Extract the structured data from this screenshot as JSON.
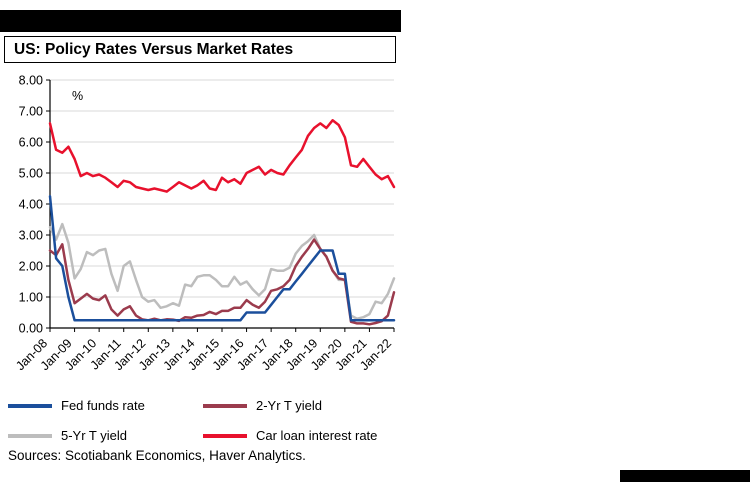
{
  "page": {
    "title": "US: Policy Rates Versus Market Rates",
    "sources": "Sources: Scotiabank Economics, Haver Analytics."
  },
  "colors": {
    "fed_funds": "#1B4F9C",
    "two_yr": "#9B3B4D",
    "five_yr": "#BDBDBD",
    "car_loan": "#E8112D",
    "grid": "#DADADA",
    "axis": "#000000",
    "header_bar": "#000000"
  },
  "legend": [
    {
      "label": "Fed funds rate",
      "color": "#1B4F9C"
    },
    {
      "label": "2-Yr T yield",
      "color": "#9B3B4D"
    },
    {
      "label": "5-Yr T yield",
      "color": "#BDBDBD"
    },
    {
      "label": "Car loan interest rate",
      "color": "#E8112D"
    }
  ],
  "chart_data": {
    "type": "line",
    "title": "US: Policy Rates Versus Market Rates",
    "xlabel": "",
    "ylabel": "%",
    "ylim": [
      0,
      8
    ],
    "grid": true,
    "legend_position": "below",
    "x_frequency": "quarterly, Jan-2008 through Jan-2022",
    "y_ticks": [
      "0.00",
      "1.00",
      "2.00",
      "3.00",
      "4.00",
      "5.00",
      "6.00",
      "7.00",
      "8.00"
    ],
    "x_tick_labels": [
      "Jan-08",
      "Jan-09",
      "Jan-10",
      "Jan-11",
      "Jan-12",
      "Jan-13",
      "Jan-14",
      "Jan-15",
      "Jan-16",
      "Jan-17",
      "Jan-18",
      "Jan-19",
      "Jan-20",
      "Jan-21",
      "Jan-22"
    ],
    "x_tick_indices": [
      0,
      4,
      8,
      12,
      16,
      20,
      24,
      28,
      32,
      36,
      40,
      44,
      48,
      52,
      56
    ],
    "draw_order": [
      2,
      1,
      0,
      3
    ],
    "series": [
      {
        "name": "Fed funds rate",
        "color": "#1B4F9C",
        "values": [
          4.25,
          2.25,
          2.0,
          1.0,
          0.25,
          0.25,
          0.25,
          0.25,
          0.25,
          0.25,
          0.25,
          0.25,
          0.25,
          0.25,
          0.25,
          0.25,
          0.25,
          0.25,
          0.25,
          0.25,
          0.25,
          0.25,
          0.25,
          0.25,
          0.25,
          0.25,
          0.25,
          0.25,
          0.25,
          0.25,
          0.25,
          0.25,
          0.5,
          0.5,
          0.5,
          0.5,
          0.75,
          1.0,
          1.25,
          1.25,
          1.5,
          1.75,
          2.0,
          2.25,
          2.5,
          2.5,
          2.5,
          1.75,
          1.75,
          0.25,
          0.25,
          0.25,
          0.25,
          0.25,
          0.25,
          0.25,
          0.25
        ]
      },
      {
        "name": "2-Yr T yield",
        "color": "#9B3B4D",
        "values": [
          2.5,
          2.35,
          2.7,
          1.55,
          0.8,
          0.95,
          1.1,
          0.95,
          0.9,
          1.05,
          0.6,
          0.4,
          0.6,
          0.7,
          0.4,
          0.28,
          0.25,
          0.3,
          0.25,
          0.28,
          0.27,
          0.23,
          0.35,
          0.33,
          0.4,
          0.42,
          0.52,
          0.45,
          0.55,
          0.55,
          0.65,
          0.65,
          0.9,
          0.75,
          0.65,
          0.85,
          1.2,
          1.25,
          1.35,
          1.55,
          2.0,
          2.3,
          2.55,
          2.85,
          2.55,
          2.3,
          1.85,
          1.6,
          1.55,
          0.2,
          0.15,
          0.15,
          0.12,
          0.16,
          0.22,
          0.4,
          1.15
        ]
      },
      {
        "name": "5-Yr T yield",
        "color": "#BDBDBD",
        "values": [
          3.25,
          2.85,
          3.35,
          2.75,
          1.6,
          1.9,
          2.45,
          2.35,
          2.5,
          2.55,
          1.75,
          1.2,
          2.0,
          2.15,
          1.55,
          1.0,
          0.85,
          0.9,
          0.65,
          0.7,
          0.8,
          0.72,
          1.4,
          1.35,
          1.65,
          1.7,
          1.7,
          1.55,
          1.35,
          1.35,
          1.65,
          1.4,
          1.5,
          1.25,
          1.05,
          1.25,
          1.9,
          1.85,
          1.85,
          1.95,
          2.4,
          2.65,
          2.8,
          3.0,
          2.55,
          2.3,
          1.85,
          1.55,
          1.55,
          0.4,
          0.3,
          0.35,
          0.45,
          0.85,
          0.8,
          1.1,
          1.6
        ]
      },
      {
        "name": "Car loan interest rate",
        "color": "#E8112D",
        "values": [
          6.6,
          5.75,
          5.65,
          5.85,
          5.45,
          4.9,
          5.0,
          4.9,
          4.95,
          4.85,
          4.7,
          4.55,
          4.75,
          4.7,
          4.55,
          4.5,
          4.45,
          4.5,
          4.45,
          4.4,
          4.55,
          4.7,
          4.6,
          4.5,
          4.6,
          4.75,
          4.5,
          4.45,
          4.85,
          4.7,
          4.8,
          4.65,
          5.0,
          5.1,
          5.2,
          4.95,
          5.1,
          5.0,
          4.95,
          5.25,
          5.5,
          5.75,
          6.2,
          6.45,
          6.6,
          6.45,
          6.7,
          6.55,
          6.15,
          5.25,
          5.2,
          5.45,
          5.2,
          4.95,
          4.8,
          4.9,
          4.55
        ]
      }
    ]
  }
}
